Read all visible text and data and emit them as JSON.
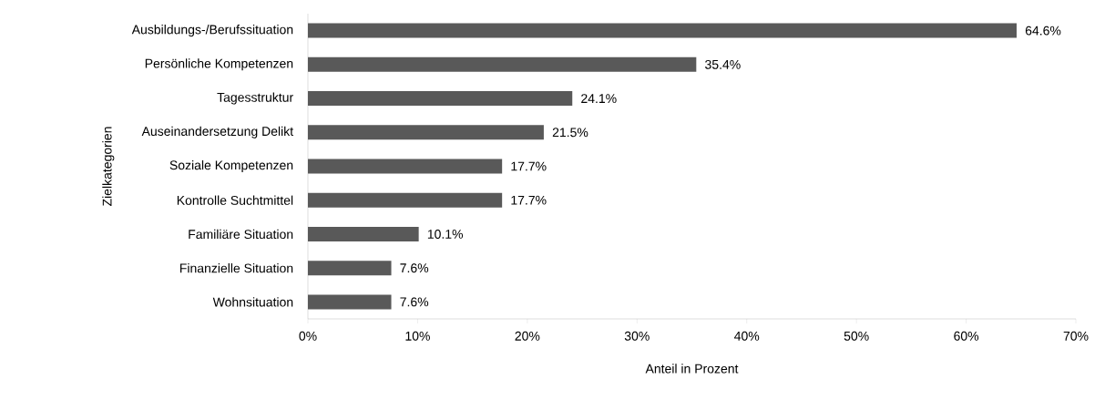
{
  "chart_data": {
    "type": "bar",
    "orientation": "horizontal",
    "xlabel": "Anteil in Prozent",
    "ylabel": "Zielkategorien",
    "categories": [
      "Ausbildungs-/Berufssituation",
      "Persönliche Kompetenzen",
      "Tagesstruktur",
      "Auseinandersetzung Delikt",
      "Soziale Kompetenzen",
      "Kontrolle Suchtmittel",
      "Familiäre Situation",
      "Finanzielle Situation",
      "Wohnsituation"
    ],
    "values": [
      64.6,
      35.4,
      24.1,
      21.5,
      17.7,
      17.7,
      10.1,
      7.6,
      7.6
    ],
    "value_labels": [
      "64.6%",
      "35.4%",
      "24.1%",
      "21.5%",
      "17.7%",
      "17.7%",
      "10.1%",
      "7.6%",
      "7.6%"
    ],
    "color": "#595959",
    "xlim": [
      0,
      70
    ],
    "xticks": [
      {
        "value": 0,
        "label": "0%"
      },
      {
        "value": 10,
        "label": "10%"
      },
      {
        "value": 20,
        "label": "20%"
      },
      {
        "value": 30,
        "label": "30%"
      },
      {
        "value": 40,
        "label": "40%"
      },
      {
        "value": 50,
        "label": "50%"
      },
      {
        "value": 60,
        "label": "60%"
      },
      {
        "value": 70,
        "label": "70%"
      }
    ]
  }
}
